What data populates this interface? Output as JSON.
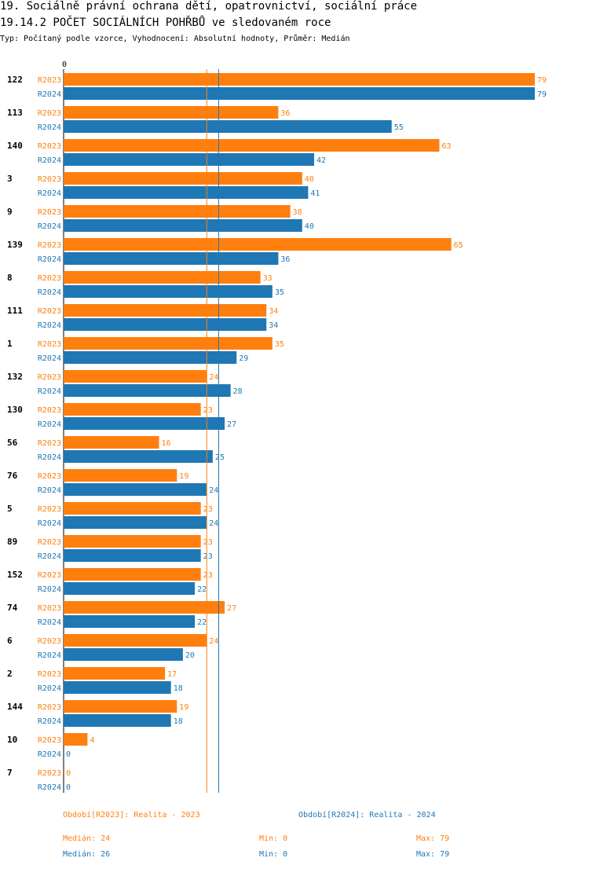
{
  "header": {
    "title1": "19. Sociálně právní ochrana dětí, opatrovnictví, sociální práce",
    "title2": "19.14.2 POČET SOCIÁLNÍCH POHŘBŮ ve sledovaném roce",
    "subtitle": "Typ: Počítaný podle vzorce, Vyhodnocení: Absolutní hodnoty, Průměr: Medián"
  },
  "colors": {
    "r2023": "#ff7f0e",
    "r2024": "#1f77b4"
  },
  "chart_data": {
    "type": "bar",
    "orientation": "horizontal",
    "axis_zero_label": "0",
    "categories": [
      "122",
      "113",
      "140",
      "3",
      "9",
      "139",
      "8",
      "111",
      "1",
      "132",
      "130",
      "56",
      "76",
      "5",
      "89",
      "152",
      "74",
      "6",
      "2",
      "144",
      "10",
      "7"
    ],
    "series": [
      {
        "name": "R2023",
        "values": [
          79,
          36,
          63,
          40,
          38,
          65,
          33,
          34,
          35,
          24,
          23,
          16,
          19,
          23,
          23,
          23,
          27,
          24,
          17,
          19,
          4,
          0
        ]
      },
      {
        "name": "R2024",
        "values": [
          79,
          55,
          42,
          41,
          40,
          36,
          35,
          34,
          29,
          28,
          27,
          25,
          24,
          24,
          23,
          22,
          22,
          20,
          18,
          18,
          0,
          0
        ]
      }
    ],
    "xlim": [
      0,
      79
    ],
    "median_lines": {
      "R2023": 24,
      "R2024": 26
    }
  },
  "footer": {
    "legend_r2023": "Období[R2023]: Realita - 2023",
    "legend_r2024": "Období[R2024]: Realita - 2024",
    "median_r2023": "Medián: 24",
    "min_r2023": "Min: 0",
    "max_r2023": "Max: 79",
    "median_r2024": "Medián: 26",
    "min_r2024": "Min: 0",
    "max_r2024": "Max: 79"
  }
}
